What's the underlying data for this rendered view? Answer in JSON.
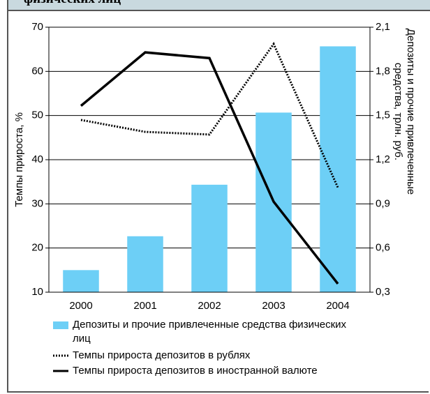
{
  "chart_data": {
    "type": "bar-line",
    "title": "физических лиц",
    "y_label": "Темпы прироста, %",
    "y2_label": "Депозиты и прочие привлеченные средства, трлн. руб.",
    "categories": [
      "2000",
      "2001",
      "2002",
      "2003",
      "2004"
    ],
    "ylim": [
      10,
      70
    ],
    "yticks": [
      10,
      20,
      30,
      40,
      50,
      60,
      70
    ],
    "y2lim": [
      0.3,
      2.1
    ],
    "y2ticks": [
      {
        "value": 0.3,
        "label": "0,3"
      },
      {
        "value": 0.6,
        "label": "0,6"
      },
      {
        "value": 0.9,
        "label": "0,9"
      },
      {
        "value": 1.2,
        "label": "1,2"
      },
      {
        "value": 1.5,
        "label": "1,5"
      },
      {
        "value": 1.8,
        "label": "1,8"
      },
      {
        "value": 2.1,
        "label": "2,1"
      }
    ],
    "grid": true,
    "series": [
      {
        "name": "Депозиты и прочие привлеченные средства физических лиц",
        "type": "bar",
        "axis": "y2",
        "color": "#6dcff6",
        "values": [
          0.45,
          0.68,
          1.03,
          1.52,
          1.97
        ]
      },
      {
        "name": "Темпы прироста депозитов в рублях",
        "type": "line",
        "dash": "dotted",
        "color": "#000000",
        "values": [
          49,
          46.3,
          45.7,
          66.2,
          33.7
        ]
      },
      {
        "name": "Темпы прироста депозитов в иностранной валюте",
        "type": "line",
        "dash": "solid",
        "color": "#000000",
        "values": [
          52.2,
          64.3,
          63,
          30.5,
          11.9
        ]
      }
    ]
  }
}
